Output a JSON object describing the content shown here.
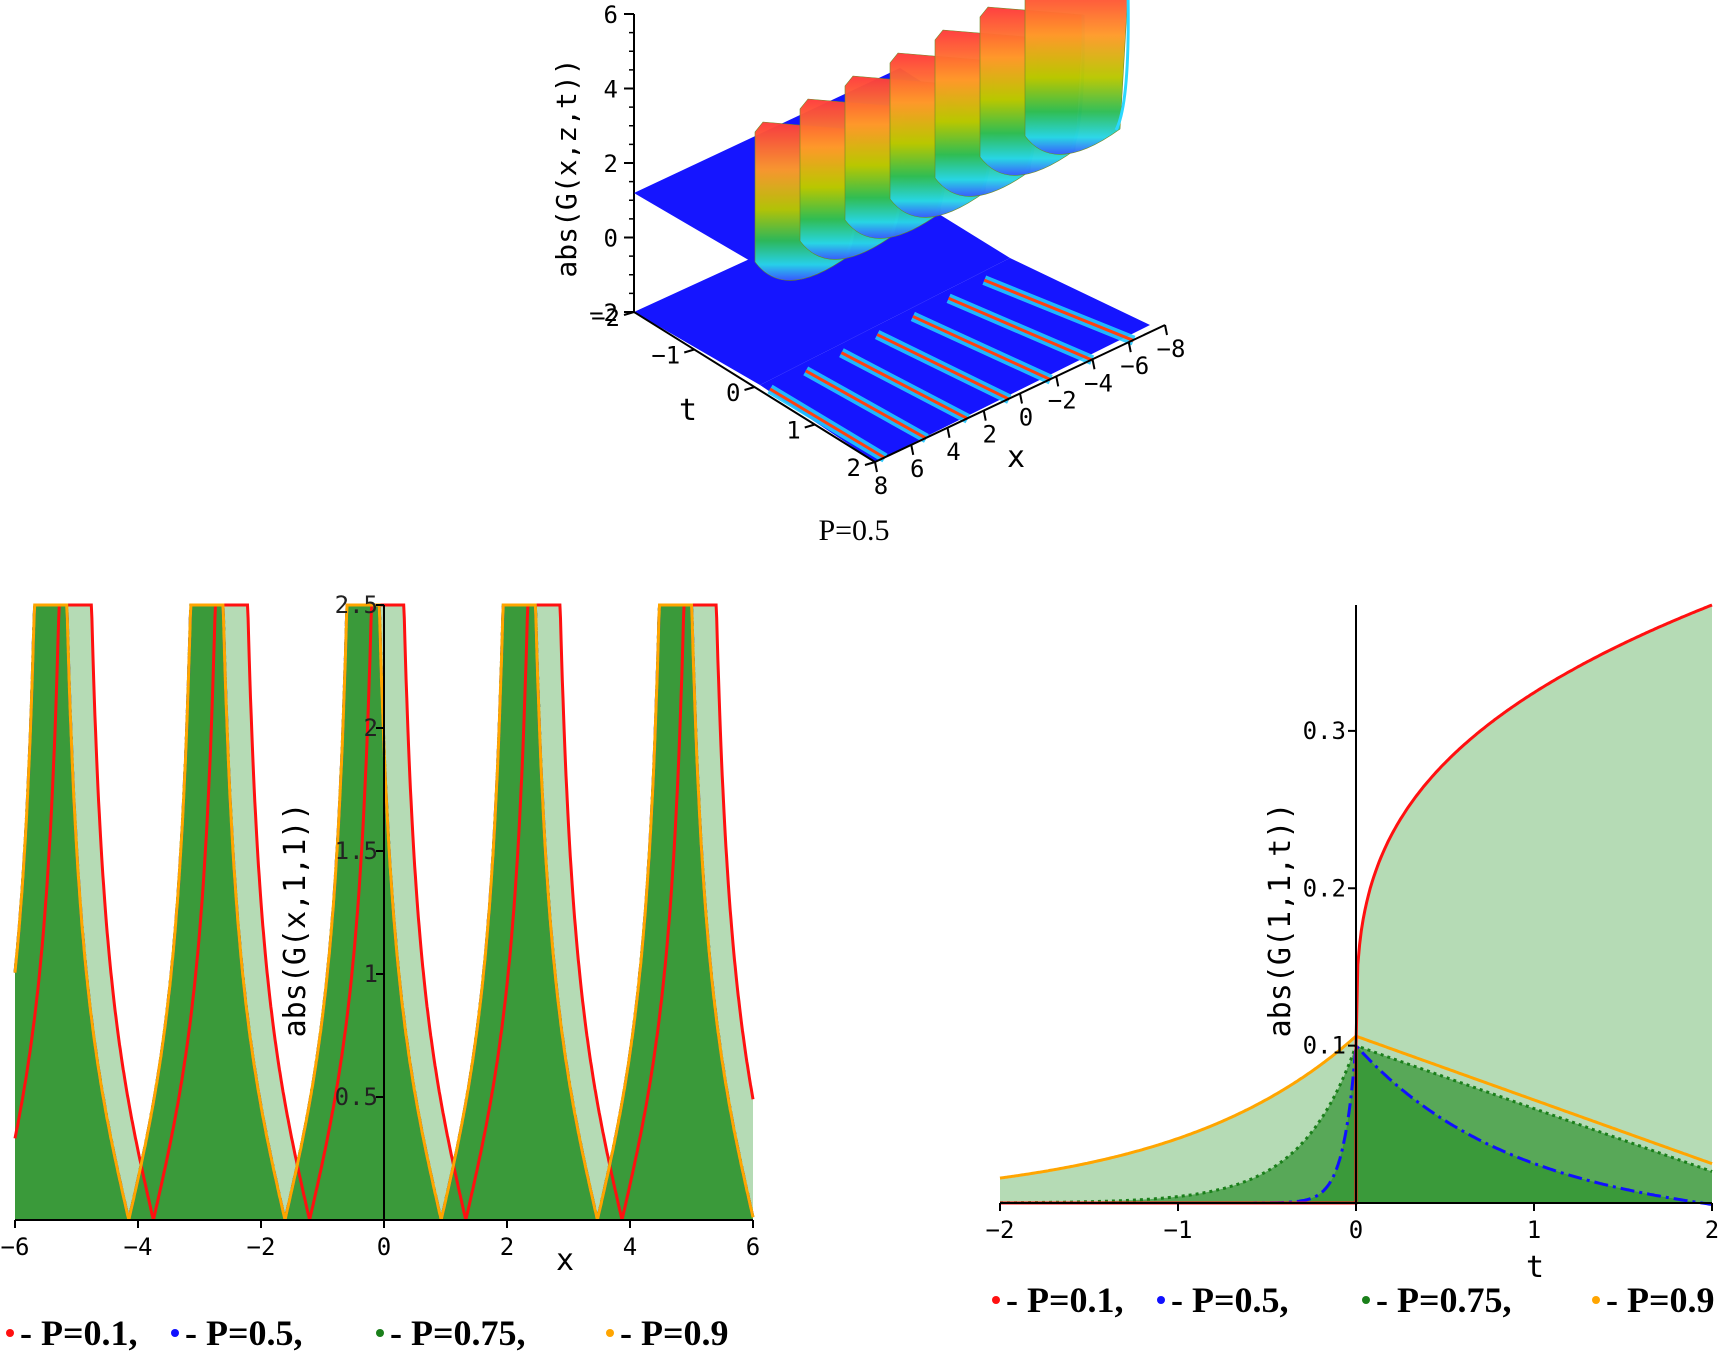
{
  "figure": {
    "caption_top": "P=0.5"
  },
  "colors": {
    "p01": "#ff1010",
    "p05": "#1010ff",
    "p075": "#1a7f1a",
    "p09": "#ffa500",
    "fill_light": "#b5dbb5",
    "fill_mid": "#58a858",
    "fill_dark": "#3a9a3a",
    "surface_blue": "#1515ff"
  },
  "chart_data": [
    {
      "type": "surface3d",
      "title": "P=0.5",
      "zlabel": "abs(G(x,z,t))",
      "xlabel": "x",
      "tlabel": "t",
      "z_ticks": [
        "6",
        "4",
        "2",
        "0",
        "−2"
      ],
      "z_tick_values": [
        6,
        4,
        2,
        0,
        -2
      ],
      "t_ticks": [
        "−2",
        "−1",
        "0",
        "1",
        "2"
      ],
      "t_tick_values": [
        -2,
        -1,
        0,
        1,
        2
      ],
      "x_ticks": [
        "8",
        "6",
        "4",
        "2",
        "0",
        "−2",
        "−4",
        "−6",
        "−8"
      ],
      "x_tick_values": [
        8,
        6,
        4,
        2,
        0,
        -2,
        -4,
        -6,
        -8
      ],
      "xlim": [
        -8,
        8
      ],
      "tlim": [
        -2,
        2
      ],
      "zlim": [
        -2,
        6
      ],
      "ridge_count": 7,
      "peak_value": 6,
      "description_series": "periodic ridges along x for t>0, zero for t<0"
    },
    {
      "type": "line",
      "xlabel": "x",
      "ylabel": "abs(G(x,1,1))",
      "xlim": [
        -6,
        6
      ],
      "ylim": [
        0,
        2.5
      ],
      "x_ticks": [
        "−6",
        "−4",
        "−2",
        "0",
        "2",
        "4",
        "6"
      ],
      "x_tick_values": [
        -6,
        -4,
        -2,
        0,
        2,
        4,
        6
      ],
      "y_ticks": [
        "0.5",
        "1",
        "1.5",
        "2",
        "2.5"
      ],
      "y_tick_values": [
        0.5,
        1,
        1.5,
        2,
        2.5
      ],
      "series": [
        {
          "name": "P=0.1",
          "color": "#ff1010",
          "style": "solid",
          "period": 2.54,
          "minima": [
            -3.75,
            -1.2,
            1.34,
            3.88
          ],
          "min_value": 0.0
        },
        {
          "name": "P=0.5",
          "color": "#1010ff",
          "style": "dashdot",
          "period": 2.54,
          "minima": [
            -4.15,
            -1.6,
            0.95,
            3.48
          ],
          "min_value": 0.0
        },
        {
          "name": "P=0.75",
          "color": "#1a7f1a",
          "style": "dotted",
          "period": 2.54,
          "minima": [
            -4.15,
            -1.6,
            0.95,
            3.48
          ],
          "min_value": 0.0
        },
        {
          "name": "P=0.9",
          "color": "#ffa500",
          "style": "solid",
          "period": 2.54,
          "minima": [
            -4.15,
            -1.6,
            0.95,
            3.48
          ],
          "min_value": 0.0
        }
      ],
      "legend": [
        {
          "label": "- P=0.1,",
          "color": "#ff1010"
        },
        {
          "label": "- P=0.5,",
          "color": "#1010ff"
        },
        {
          "label": "- P=0.75,",
          "color": "#1a7f1a"
        },
        {
          "label": "- P=0.9",
          "color": "#ffa500"
        }
      ]
    },
    {
      "type": "line",
      "xlabel": "t",
      "ylabel": "abs(G(1,1,t))",
      "xlim": [
        -2,
        2
      ],
      "ylim": [
        0,
        0.38
      ],
      "x_ticks": [
        "−2",
        "−1",
        "0",
        "1",
        "2"
      ],
      "x_tick_values": [
        -2,
        -1,
        0,
        1,
        2
      ],
      "y_ticks": [
        "0.1",
        "0.2",
        "0.3"
      ],
      "y_tick_values": [
        0.1,
        0.2,
        0.3
      ],
      "series": [
        {
          "name": "P=0.1",
          "color": "#ff1010",
          "style": "solid",
          "t_pos_values": [
            0.1,
            0.25,
            0.3,
            0.33,
            0.38
          ],
          "t_pos_points": [
            0.01,
            0.2,
            0.6,
            1.0,
            2.0
          ]
        },
        {
          "name": "P=0.5",
          "color": "#1010ff",
          "style": "dashdot",
          "peak": 0.1,
          "end": 0.01
        },
        {
          "name": "P=0.75",
          "color": "#1a7f1a",
          "style": "dotted",
          "peak": 0.1,
          "start": 0.0,
          "end": 0.02
        },
        {
          "name": "P=0.9",
          "color": "#ffa500",
          "style": "solid",
          "peak": 0.106,
          "start": 0.016,
          "end": 0.025
        }
      ],
      "legend": [
        {
          "label": "- P=0.1,",
          "color": "#ff1010"
        },
        {
          "label": "- P=0.5,",
          "color": "#1010ff"
        },
        {
          "label": "- P=0.75,",
          "color": "#1a7f1a"
        },
        {
          "label": "- P=0.9",
          "color": "#ffa500"
        }
      ]
    }
  ]
}
